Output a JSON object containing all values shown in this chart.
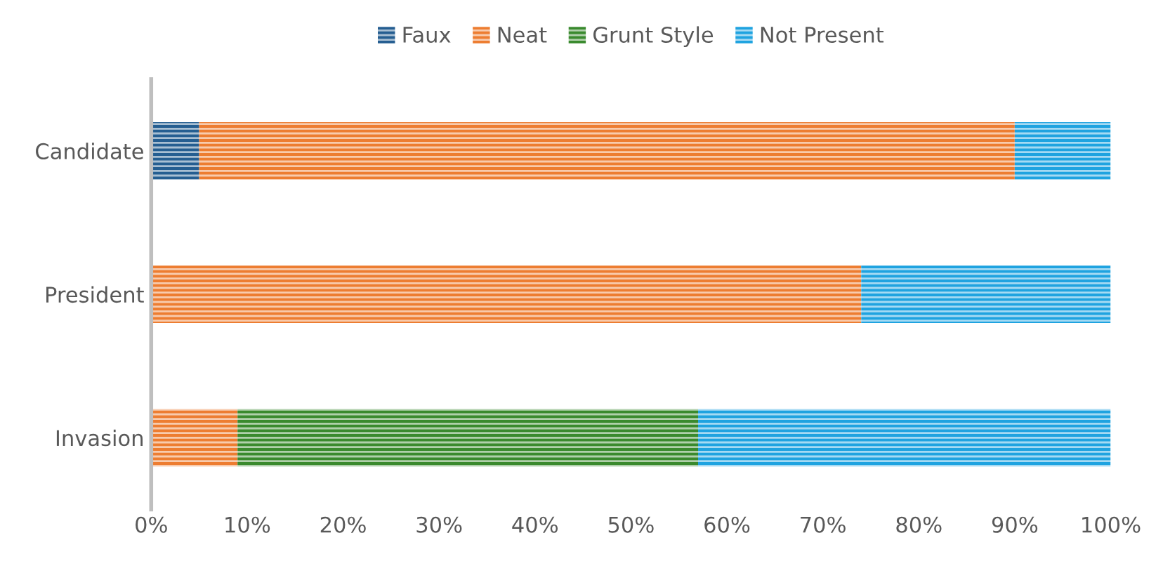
{
  "chart_data": {
    "type": "bar",
    "orientation": "horizontal",
    "stacked": true,
    "categories": [
      "Candidate",
      "President",
      "Invasion"
    ],
    "series": [
      {
        "name": "Faux",
        "color": "#255e91",
        "values": [
          5,
          0,
          0
        ]
      },
      {
        "name": "Neat",
        "color": "#ed7d31",
        "values": [
          85,
          74,
          9
        ]
      },
      {
        "name": "Grunt Style",
        "color": "#3a8a2e",
        "values": [
          0,
          0,
          48
        ]
      },
      {
        "name": "Not Present",
        "color": "#1fa3e0",
        "values": [
          10,
          26,
          43
        ]
      }
    ],
    "xlim": [
      0,
      100
    ],
    "xticks": [
      {
        "value": 0,
        "label": "0%"
      },
      {
        "value": 10,
        "label": "10%"
      },
      {
        "value": 20,
        "label": "20%"
      },
      {
        "value": 30,
        "label": "30%"
      },
      {
        "value": 40,
        "label": "40%"
      },
      {
        "value": 50,
        "label": "50%"
      },
      {
        "value": 60,
        "label": "60%"
      },
      {
        "value": 70,
        "label": "70%"
      },
      {
        "value": 80,
        "label": "80%"
      },
      {
        "value": 90,
        "label": "90%"
      },
      {
        "value": 100,
        "label": "100%"
      }
    ],
    "legend": "top",
    "grid": false
  }
}
